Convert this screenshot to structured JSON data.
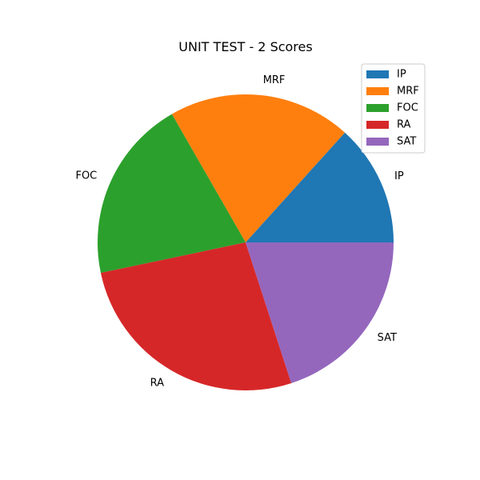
{
  "chart_data": {
    "type": "pie",
    "title": "UNIT TEST - 2 Scores",
    "categories": [
      "IP",
      "MRF",
      "FOC",
      "RA",
      "SAT"
    ],
    "values": [
      13.3,
      20,
      20,
      26.7,
      20
    ],
    "colors": [
      "#1f77b4",
      "#ff7f0e",
      "#2ca02c",
      "#d62728",
      "#9467bd"
    ],
    "start_angle": 0,
    "direction": "counterclockwise",
    "legend": {
      "placement": "top-right",
      "entries": [
        "IP",
        "MRF",
        "FOC",
        "RA",
        "SAT"
      ]
    }
  }
}
